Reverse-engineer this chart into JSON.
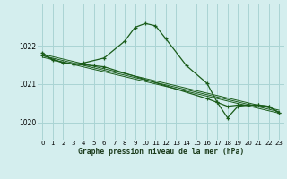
{
  "title": "Graphe pression niveau de la mer (hPa)",
  "bg_color": "#d4eeee",
  "grid_color": "#aad4d4",
  "line_color": "#1a5c1a",
  "ylim": [
    1019.55,
    1023.1
  ],
  "xlim": [
    -0.5,
    23.5
  ],
  "yticks": [
    1020,
    1021,
    1022
  ],
  "xticks": [
    0,
    1,
    2,
    3,
    4,
    5,
    6,
    7,
    8,
    9,
    10,
    11,
    12,
    13,
    14,
    15,
    16,
    17,
    18,
    19,
    20,
    21,
    22,
    23
  ],
  "main_x": [
    0,
    1,
    3,
    4,
    6,
    8,
    9,
    10,
    11,
    12,
    14,
    16,
    17,
    18,
    19,
    20,
    21,
    22,
    23
  ],
  "main_y": [
    1021.82,
    1021.62,
    1021.52,
    1021.55,
    1021.68,
    1022.12,
    1022.48,
    1022.58,
    1022.52,
    1022.18,
    1021.48,
    1021.02,
    1020.52,
    1020.12,
    1020.42,
    1020.45,
    1020.45,
    1020.42,
    1020.25
  ],
  "line2_x": [
    0,
    2,
    3,
    5,
    6,
    16,
    17,
    18,
    19,
    20,
    21,
    22,
    23
  ],
  "line2_y": [
    1021.75,
    1021.55,
    1021.52,
    1021.48,
    1021.45,
    1020.62,
    1020.52,
    1020.42,
    1020.45,
    1020.45,
    1020.45,
    1020.42,
    1020.25
  ],
  "diag_lines": [
    {
      "x0": 0,
      "y0": 1021.78,
      "x1": 23,
      "y1": 1020.32
    },
    {
      "x0": 0,
      "y0": 1021.74,
      "x1": 23,
      "y1": 1020.28
    },
    {
      "x0": 0,
      "y0": 1021.7,
      "x1": 23,
      "y1": 1020.24
    }
  ]
}
